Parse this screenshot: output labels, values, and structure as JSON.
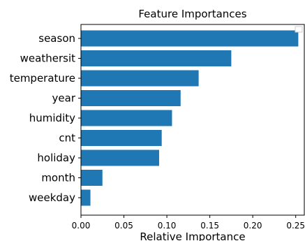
{
  "chart_data": {
    "type": "bar",
    "orientation": "horizontal",
    "title": "Feature Importances",
    "xlabel": "Relative Importance",
    "ylabel": "",
    "categories": [
      "season",
      "weathersit",
      "temperature",
      "year",
      "humidity",
      "cnt",
      "holiday",
      "month",
      "weekday"
    ],
    "values": [
      0.253,
      0.175,
      0.137,
      0.116,
      0.106,
      0.094,
      0.091,
      0.025,
      0.011
    ],
    "xlim": [
      0,
      0.26
    ],
    "xticks": [
      0.0,
      0.05,
      0.1,
      0.15,
      0.2,
      0.25
    ],
    "xtick_labels": [
      "0.00",
      "0.05",
      "0.10",
      "0.15",
      "0.20",
      "0.25"
    ],
    "grid": false,
    "legend": {
      "placement": "top-right",
      "entries": []
    },
    "colors": {
      "bar": "#1f77b4",
      "axis": "#000000",
      "background": "#ffffff"
    }
  }
}
